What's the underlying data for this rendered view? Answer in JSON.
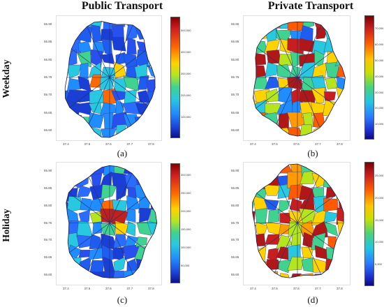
{
  "columns": [
    "Public Transport",
    "Private Transport"
  ],
  "rows": [
    "Weekday",
    "Holiday"
  ],
  "panels": [
    {
      "label": "(a)",
      "mode": "Public Transport",
      "day": "Weekday",
      "lat_ticks": [
        "55.90",
        "55.85",
        "55.80",
        "55.75",
        "55.70",
        "55.65",
        "55.60"
      ],
      "lon_ticks": [
        "37.4",
        "37.5",
        "37.6",
        "37.7",
        "37.8"
      ],
      "colorbar_ticks": [
        "500,000",
        "400,000",
        "300,000",
        "200,000",
        "100,000"
      ],
      "colorbar_range": [
        0,
        560000
      ],
      "hotspot_color": "#c0201e"
    },
    {
      "label": "(b)",
      "mode": "Private Transport",
      "day": "Weekday",
      "lat_ticks": [
        "55.90",
        "55.85",
        "55.80",
        "55.75",
        "55.70",
        "55.65",
        "55.60"
      ],
      "lon_ticks": [
        "37.4",
        "37.5",
        "37.6",
        "37.7",
        "37.8"
      ],
      "colorbar_ticks": [
        "70,000",
        "60,000",
        "50,000",
        "40,000",
        "30,000",
        "20,000",
        "10,000"
      ],
      "colorbar_range": [
        0,
        78000
      ],
      "hotspot_color": "#b01818"
    },
    {
      "label": "(c)",
      "mode": "Public Transport",
      "day": "Holiday",
      "lat_ticks": [
        "55.90",
        "55.85",
        "55.80",
        "55.75",
        "55.70",
        "55.65",
        "55.60"
      ],
      "lon_ticks": [
        "37.4",
        "37.5",
        "37.6",
        "37.7",
        "37.8"
      ],
      "colorbar_ticks": [
        "300,000",
        "250,000",
        "200,000",
        "150,000",
        "100,000",
        "50,000"
      ],
      "colorbar_range": [
        0,
        330000
      ],
      "hotspot_color": "#c0201e"
    },
    {
      "label": "(d)",
      "mode": "Private Transport",
      "day": "Holiday",
      "lat_ticks": [
        "55.90",
        "55.85",
        "55.80",
        "55.75",
        "55.70",
        "55.65",
        "55.60"
      ],
      "lon_ticks": [
        "37.4",
        "37.5",
        "37.6",
        "37.7",
        "37.8"
      ],
      "colorbar_ticks": [
        "25,000",
        "20,000",
        "15,000",
        "10,000",
        "5,000"
      ],
      "colorbar_range": [
        0,
        28000
      ],
      "hotspot_color": "#b01818"
    }
  ]
}
